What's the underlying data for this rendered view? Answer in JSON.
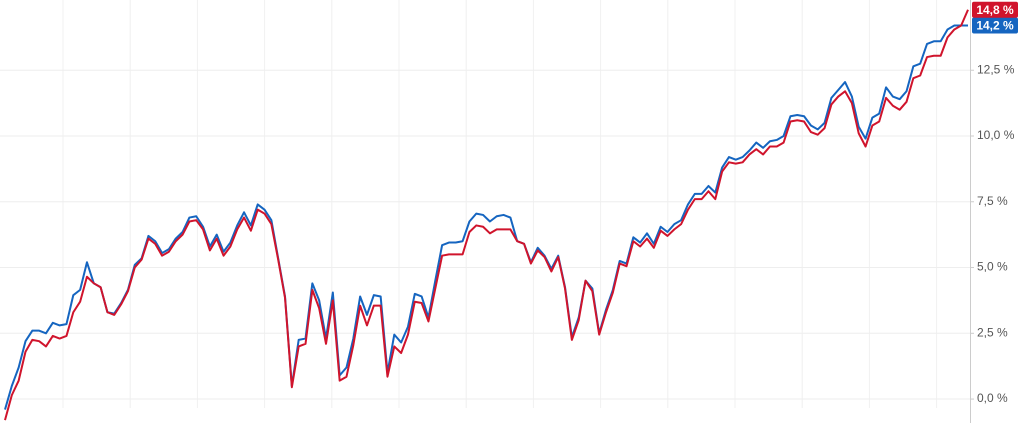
{
  "chart_data": {
    "type": "line",
    "categories": [
      null,
      null,
      null,
      null,
      null,
      null,
      null,
      null,
      null,
      null,
      null,
      null,
      null,
      null,
      null,
      null,
      null,
      null,
      null,
      null,
      null,
      null,
      null,
      null,
      null,
      null,
      null,
      null,
      null,
      null,
      null,
      null,
      null,
      null,
      null,
      null,
      null,
      null,
      null,
      null,
      null,
      null,
      null,
      null,
      null,
      null,
      null,
      null,
      null,
      null,
      null,
      null,
      null,
      null,
      null,
      null,
      null,
      null,
      null,
      null,
      null,
      null,
      null,
      null,
      null,
      null,
      null,
      null,
      null,
      null,
      null,
      null,
      null,
      null,
      null,
      null,
      null,
      null,
      null,
      null,
      null,
      null,
      null,
      null,
      null,
      null,
      null,
      null,
      null,
      null,
      null,
      null,
      null,
      null,
      null,
      null,
      null,
      null,
      null,
      null,
      null,
      null,
      null,
      null,
      null,
      null,
      null,
      null,
      null,
      null,
      null,
      null,
      null,
      null,
      null,
      null,
      null,
      null,
      null,
      null,
      null,
      null,
      null,
      null,
      null,
      null,
      null,
      null,
      null,
      null,
      null,
      null,
      null,
      null,
      null,
      null,
      null,
      null,
      null,
      null,
      null,
      null
    ],
    "series": [
      {
        "color": "#1565c0",
        "value_label": "14,2 %",
        "values": [
          -0.4,
          0.5,
          1.2,
          2.2,
          2.6,
          2.6,
          2.5,
          2.9,
          2.8,
          2.85,
          3.95,
          4.15,
          5.2,
          4.4,
          4.25,
          3.3,
          3.25,
          3.65,
          4.15,
          5.1,
          5.35,
          6.2,
          6.0,
          5.55,
          5.7,
          6.1,
          6.35,
          6.9,
          6.95,
          6.55,
          5.8,
          6.25,
          5.6,
          5.95,
          6.6,
          7.1,
          6.6,
          7.4,
          7.2,
          6.8,
          5.35,
          3.9,
          0.5,
          2.25,
          2.3,
          4.4,
          3.75,
          2.3,
          4.05,
          0.9,
          1.2,
          2.3,
          3.9,
          3.2,
          3.95,
          3.9,
          1.0,
          2.45,
          2.15,
          2.75,
          4.0,
          3.9,
          3.1,
          4.5,
          5.85,
          5.95,
          5.95,
          6.0,
          6.75,
          7.05,
          7.0,
          6.75,
          6.95,
          7.0,
          6.9,
          6.0,
          5.9,
          5.2,
          5.75,
          5.45,
          4.95,
          5.45,
          4.25,
          2.35,
          3.1,
          4.5,
          4.2,
          2.5,
          3.4,
          4.15,
          5.25,
          5.15,
          6.15,
          5.95,
          6.3,
          5.9,
          6.55,
          6.35,
          6.65,
          6.8,
          7.4,
          7.8,
          7.8,
          8.1,
          7.85,
          8.8,
          9.2,
          9.1,
          9.2,
          9.45,
          9.75,
          9.55,
          9.8,
          9.85,
          10.0,
          10.75,
          10.8,
          10.75,
          10.4,
          10.25,
          10.5,
          11.45,
          11.75,
          12.05,
          11.5,
          10.35,
          9.9,
          10.7,
          10.85,
          11.85,
          11.5,
          11.4,
          11.7,
          12.65,
          12.75,
          13.5,
          13.6,
          13.6,
          14.05,
          14.2,
          14.2,
          14.2
        ]
      },
      {
        "color": "#d0142c",
        "value_label": "14,8 %",
        "values": [
          -0.8,
          0.15,
          0.7,
          1.8,
          2.25,
          2.2,
          2.0,
          2.4,
          2.3,
          2.4,
          3.3,
          3.7,
          4.65,
          4.4,
          4.25,
          3.3,
          3.2,
          3.6,
          4.1,
          5.0,
          5.3,
          6.1,
          5.9,
          5.45,
          5.6,
          6.0,
          6.25,
          6.75,
          6.8,
          6.45,
          5.65,
          6.1,
          5.45,
          5.8,
          6.45,
          6.9,
          6.4,
          7.2,
          7.05,
          6.65,
          5.3,
          3.85,
          0.45,
          2.0,
          2.1,
          4.15,
          3.45,
          2.1,
          3.75,
          0.7,
          0.85,
          2.05,
          3.55,
          2.8,
          3.55,
          3.55,
          0.85,
          2.0,
          1.75,
          2.45,
          3.7,
          3.65,
          2.95,
          4.2,
          5.45,
          5.5,
          5.5,
          5.5,
          6.35,
          6.6,
          6.55,
          6.3,
          6.45,
          6.45,
          6.45,
          6.0,
          5.9,
          5.15,
          5.65,
          5.4,
          4.85,
          5.4,
          4.2,
          2.25,
          3.0,
          4.5,
          4.1,
          2.45,
          3.3,
          4.05,
          5.15,
          5.05,
          6.0,
          5.8,
          6.1,
          5.75,
          6.4,
          6.2,
          6.45,
          6.65,
          7.2,
          7.6,
          7.6,
          7.9,
          7.6,
          8.65,
          9.0,
          8.95,
          9.0,
          9.3,
          9.5,
          9.3,
          9.6,
          9.6,
          9.75,
          10.55,
          10.6,
          10.55,
          10.15,
          10.05,
          10.3,
          11.2,
          11.5,
          11.7,
          11.25,
          10.1,
          9.6,
          10.4,
          10.55,
          11.45,
          11.15,
          11.0,
          11.3,
          12.2,
          12.3,
          13.0,
          13.05,
          13.05,
          13.75,
          14.05,
          14.2,
          14.8
        ]
      }
    ],
    "ylim": [
      -0.91,
      15.17
    ],
    "yticks": [
      {
        "value": 0,
        "label": "0,0 %"
      },
      {
        "value": 2.5,
        "label": "2,5 %"
      },
      {
        "value": 5,
        "label": "5,0 %"
      },
      {
        "value": 7.5,
        "label": "7,5 %"
      },
      {
        "value": 10,
        "label": "10,0 %"
      },
      {
        "value": 12.5,
        "label": "12,5 %"
      }
    ],
    "grid": true
  }
}
